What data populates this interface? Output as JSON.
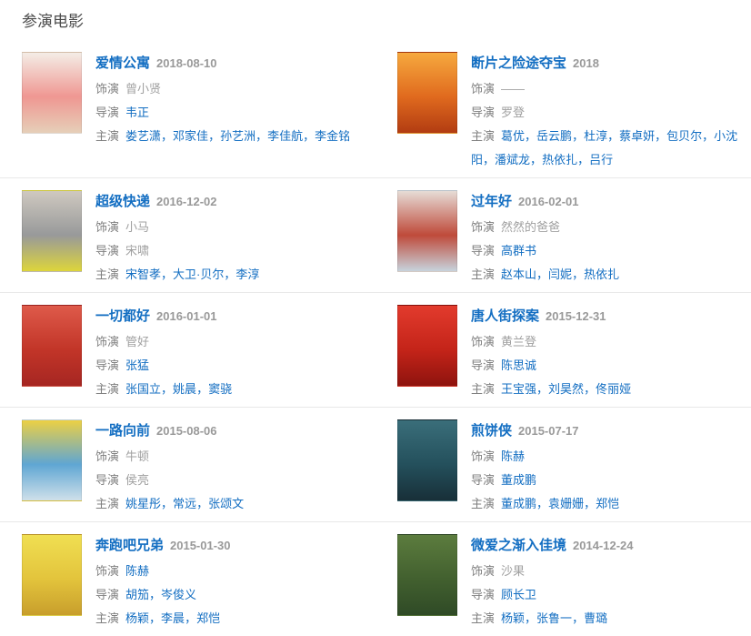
{
  "section": {
    "title": "参演电影"
  },
  "labels": {
    "role": "饰演",
    "director": "导演",
    "cast": "主演",
    "separator": "，"
  },
  "colors": {
    "link": "#136ec2",
    "muted_text": "#a0a0a0",
    "label_text": "#7f7f7f",
    "date_text": "#999999",
    "divider": "#e8e8e8",
    "heading": "#4c4c4c"
  },
  "movies": [
    {
      "title": "爱情公寓",
      "date": "2018-08-10",
      "role": {
        "name": "曾小贤",
        "link": false
      },
      "directors": [
        {
          "name": "韦正",
          "link": true
        }
      ],
      "cast": [
        {
          "name": "娄艺潇",
          "link": true
        },
        {
          "name": "邓家佳",
          "link": true
        },
        {
          "name": "孙艺洲",
          "link": true
        },
        {
          "name": "李佳航",
          "link": true
        },
        {
          "name": "李金铭",
          "link": true
        }
      ],
      "poster_colors": [
        "#f4ede6",
        "#ef9792",
        "#e6cfb8"
      ]
    },
    {
      "title": "断片之险途夺宝",
      "date": "2018",
      "role": {
        "name": "——",
        "link": false
      },
      "directors": [
        {
          "name": "罗登",
          "link": false
        }
      ],
      "cast": [
        {
          "name": "葛优",
          "link": true
        },
        {
          "name": "岳云鹏",
          "link": true
        },
        {
          "name": "杜淳",
          "link": true
        },
        {
          "name": "蔡卓妍",
          "link": true
        },
        {
          "name": "包贝尔",
          "link": true
        },
        {
          "name": "小沈阳",
          "link": true
        },
        {
          "name": "潘斌龙",
          "link": true
        },
        {
          "name": "热依扎",
          "link": true
        },
        {
          "name": "吕行",
          "link": true
        }
      ],
      "poster_colors": [
        "#f6a93e",
        "#e06a1e",
        "#b23c12"
      ]
    },
    {
      "title": "超级快递",
      "date": "2016-12-02",
      "role": {
        "name": "小马",
        "link": false
      },
      "directors": [
        {
          "name": "宋啸",
          "link": false
        }
      ],
      "cast": [
        {
          "name": "宋智孝",
          "link": true
        },
        {
          "name": "大卫·贝尔",
          "link": true
        },
        {
          "name": "李淳",
          "link": true
        }
      ],
      "poster_colors": [
        "#cfc9c0",
        "#98999a",
        "#ddd53b"
      ]
    },
    {
      "title": "过年好",
      "date": "2016-02-01",
      "role": {
        "name": "然然的爸爸",
        "link": false
      },
      "directors": [
        {
          "name": "高群书",
          "link": true
        }
      ],
      "cast": [
        {
          "name": "赵本山",
          "link": true
        },
        {
          "name": "闫妮",
          "link": true
        },
        {
          "name": "热依扎",
          "link": true
        }
      ],
      "poster_colors": [
        "#e6dcd6",
        "#bf4a3a",
        "#c7d3dc"
      ]
    },
    {
      "title": "一切都好",
      "date": "2016-01-01",
      "role": {
        "name": "管好",
        "link": false
      },
      "directors": [
        {
          "name": "张猛",
          "link": true
        }
      ],
      "cast": [
        {
          "name": "张国立",
          "link": true
        },
        {
          "name": "姚晨",
          "link": true
        },
        {
          "name": "窦骁",
          "link": true
        }
      ],
      "poster_colors": [
        "#de5a4a",
        "#c23528",
        "#a62622"
      ]
    },
    {
      "title": "唐人街探案",
      "date": "2015-12-31",
      "role": {
        "name": "黄兰登",
        "link": false
      },
      "directors": [
        {
          "name": "陈思诚",
          "link": true
        }
      ],
      "cast": [
        {
          "name": "王宝强",
          "link": true
        },
        {
          "name": "刘昊然",
          "link": true
        },
        {
          "name": "佟丽娅",
          "link": true
        }
      ],
      "poster_colors": [
        "#e23b2d",
        "#c42419",
        "#8e130e"
      ]
    },
    {
      "title": "一路向前",
      "date": "2015-08-06",
      "role": {
        "name": "牛顿",
        "link": false
      },
      "directors": [
        {
          "name": "侯亮",
          "link": false
        }
      ],
      "cast": [
        {
          "name": "姚星彤",
          "link": true
        },
        {
          "name": "常远",
          "link": true
        },
        {
          "name": "张颂文",
          "link": true
        }
      ],
      "poster_colors": [
        "#ecd044",
        "#5fa6d3",
        "#cfe0ea"
      ]
    },
    {
      "title": "煎饼侠",
      "date": "2015-07-17",
      "role": {
        "name": "陈赫",
        "link": true
      },
      "directors": [
        {
          "name": "董成鹏",
          "link": true
        }
      ],
      "cast": [
        {
          "name": "董成鹏",
          "link": true
        },
        {
          "name": "袁姗姗",
          "link": true
        },
        {
          "name": "郑恺",
          "link": true
        }
      ],
      "poster_colors": [
        "#3a6e7a",
        "#24505c",
        "#182f38"
      ]
    },
    {
      "title": "奔跑吧兄弟",
      "date": "2015-01-30",
      "role": {
        "name": "陈赫",
        "link": true
      },
      "directors": [
        {
          "name": "胡笳",
          "link": true
        },
        {
          "name": "岑俊义",
          "link": true
        }
      ],
      "cast": [
        {
          "name": "杨颖",
          "link": true
        },
        {
          "name": "李晨",
          "link": true
        },
        {
          "name": "郑恺",
          "link": true
        }
      ],
      "poster_colors": [
        "#f0df52",
        "#e3c43c",
        "#c89e2c"
      ]
    },
    {
      "title": "微爱之渐入佳境",
      "date": "2014-12-24",
      "role": {
        "name": "沙果",
        "link": false
      },
      "directors": [
        {
          "name": "顾长卫",
          "link": true
        }
      ],
      "cast": [
        {
          "name": "杨颖",
          "link": true
        },
        {
          "name": "张鲁一",
          "link": true
        },
        {
          "name": "曹璐",
          "link": true
        }
      ],
      "poster_colors": [
        "#5c7c3e",
        "#42602f",
        "#2f4a26"
      ]
    }
  ]
}
